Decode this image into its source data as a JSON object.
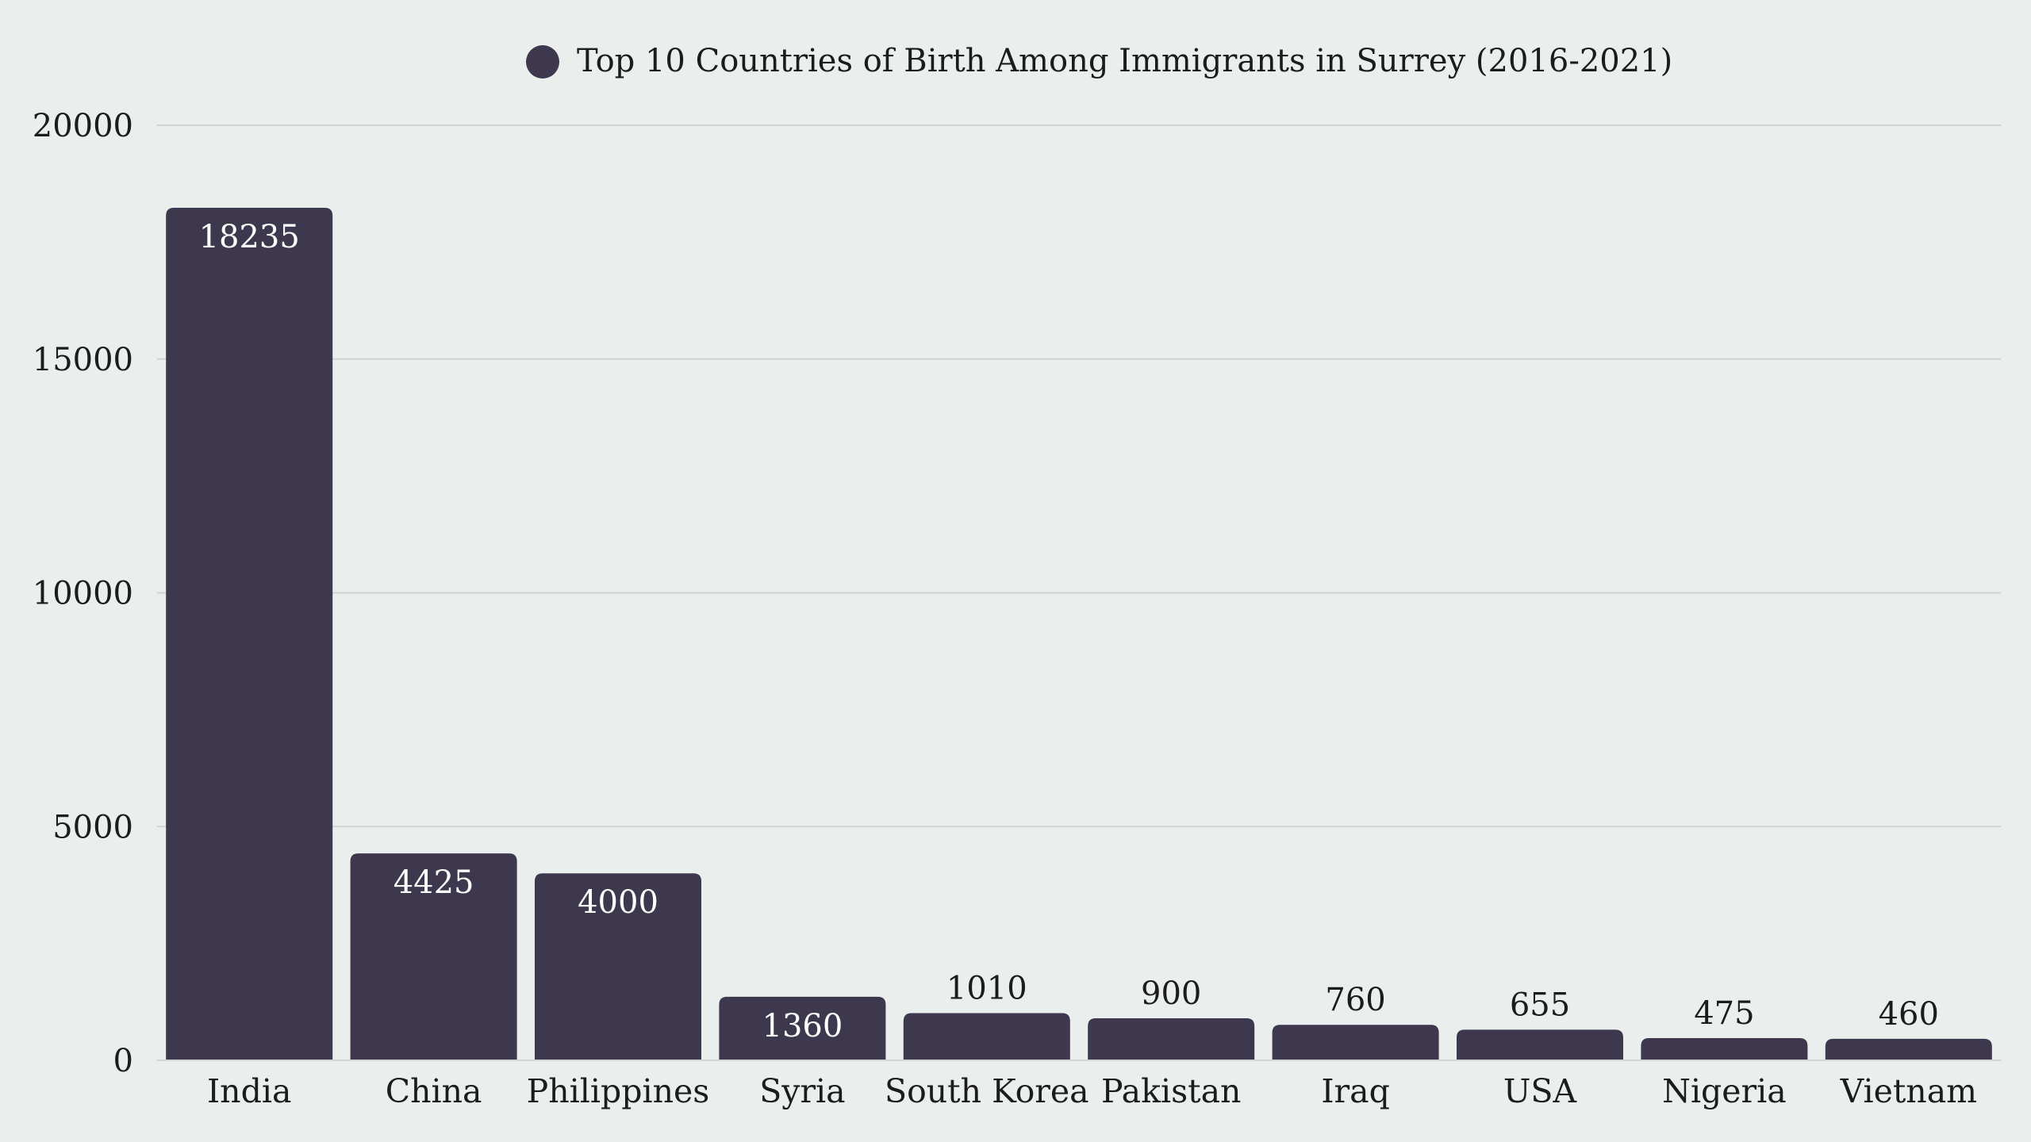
{
  "chart_data": {
    "type": "bar",
    "title": "",
    "xlabel": "",
    "ylabel": "",
    "categories": [
      "India",
      "China",
      "Philippines",
      "Syria",
      "South Korea",
      "Pakistan",
      "Iraq",
      "USA",
      "Nigeria",
      "Vietnam"
    ],
    "series": [
      {
        "name": "Top 10 Countries of Birth Among Immigrants in Surrey (2016-2021)",
        "values": [
          18235,
          4425,
          4000,
          1360,
          1010,
          900,
          760,
          655,
          475,
          460
        ],
        "color": "#3d384e"
      }
    ],
    "ylim": [
      0,
      20000
    ],
    "yticks": [
      0,
      5000,
      10000,
      15000,
      20000
    ],
    "grid": true,
    "legend_position": "top-center"
  },
  "colors": {
    "background": "#eaeeed",
    "bar": "#3d384e",
    "grid": "#cfd4d3",
    "label_inside": "#ffffff",
    "label_outside": "#1c1c1c",
    "axis_text": "#1c1c1c"
  }
}
